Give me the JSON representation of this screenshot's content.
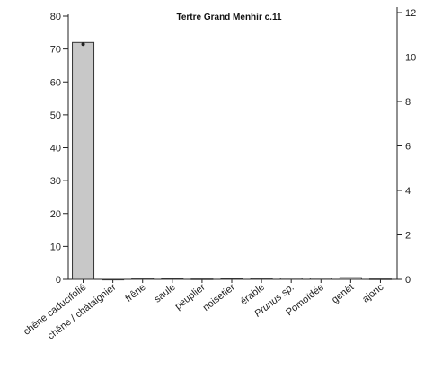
{
  "chart_data": {
    "type": "bar",
    "title": "Tertre Grand Menhir c.11",
    "categories": [
      "chêne caducifolié",
      "chêne / châtaignier",
      "frêne",
      "saule",
      "peuplier",
      "noisetier",
      "érable",
      "Prunus sp.",
      "Pomoïdée",
      "genêt",
      "ajonc"
    ],
    "italic_categories": [
      "Prunus sp."
    ],
    "values": [
      72,
      0,
      0.3,
      0.2,
      0.1,
      0.2,
      0.3,
      0.4,
      0.4,
      0.5,
      0.1
    ],
    "left_axis": {
      "ylim": [
        0,
        80
      ],
      "ticks": [
        0,
        10,
        20,
        30,
        40,
        50,
        60,
        70,
        80
      ]
    },
    "right_axis": {
      "ylim": [
        0,
        12
      ],
      "ticks": [
        0,
        2,
        4,
        6,
        8,
        10,
        12
      ]
    },
    "colors": {
      "bar_fill": "#c8c8c8",
      "bar_stroke": "#333333",
      "axis": "#222222"
    },
    "grid": false,
    "xlabel": "",
    "ylabel": ""
  }
}
